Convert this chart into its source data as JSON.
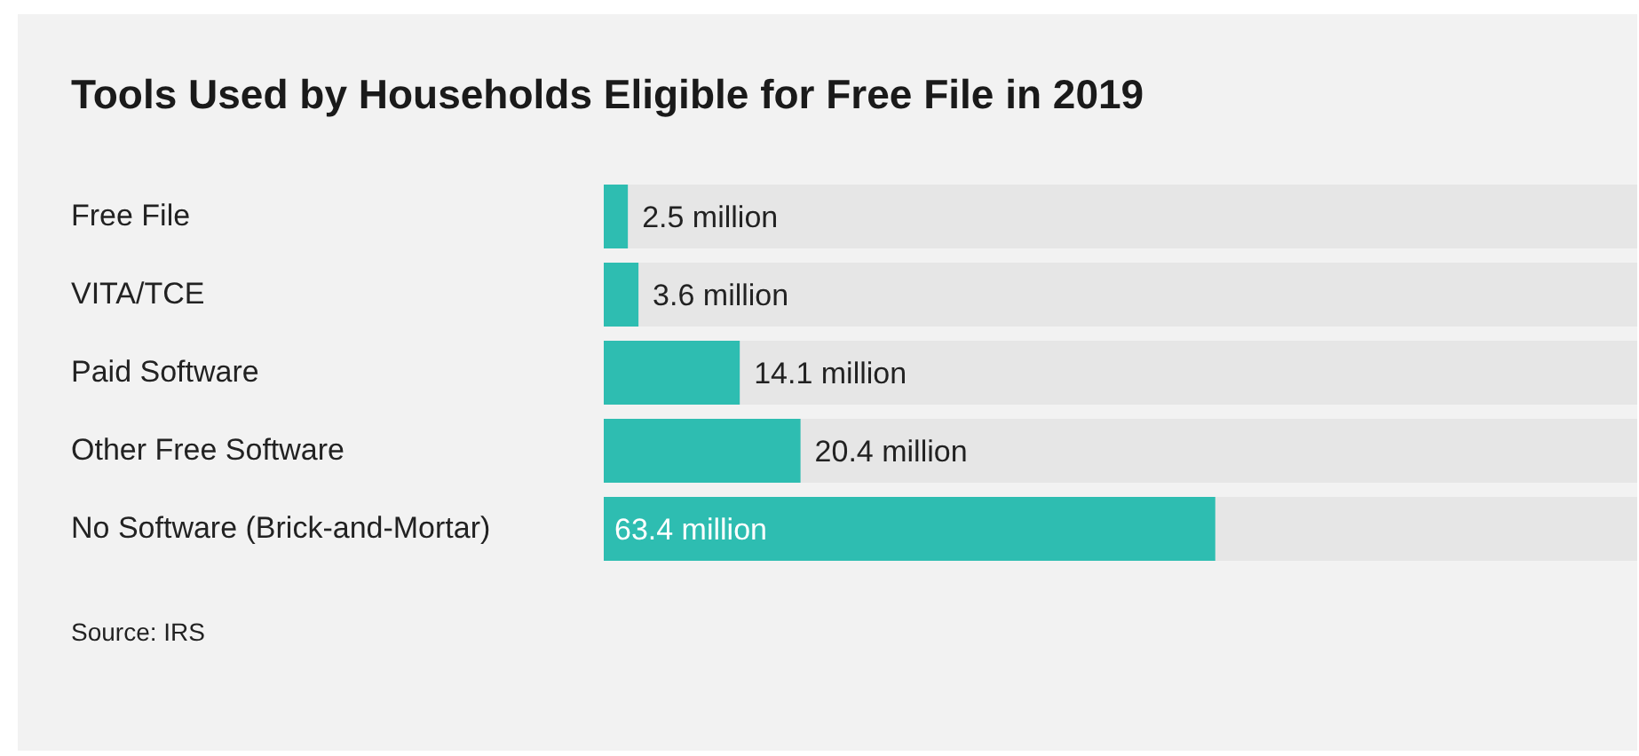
{
  "chart_data": {
    "type": "bar",
    "orientation": "horizontal",
    "title": "Tools Used by Households Eligible for Free File in 2019",
    "categories": [
      "Free File",
      "VITA/TCE",
      "Paid Software",
      "Other Free Software",
      "No Software (Brick-and-Mortar)"
    ],
    "values": [
      2.5,
      3.6,
      14.1,
      20.4,
      63.4
    ],
    "value_labels": [
      "2.5 million",
      "3.6 million",
      "14.1 million",
      "20.4 million",
      "63.4 million"
    ],
    "color": "#2ebdb1",
    "annotations": [
      "Source: IRS"
    ]
  }
}
